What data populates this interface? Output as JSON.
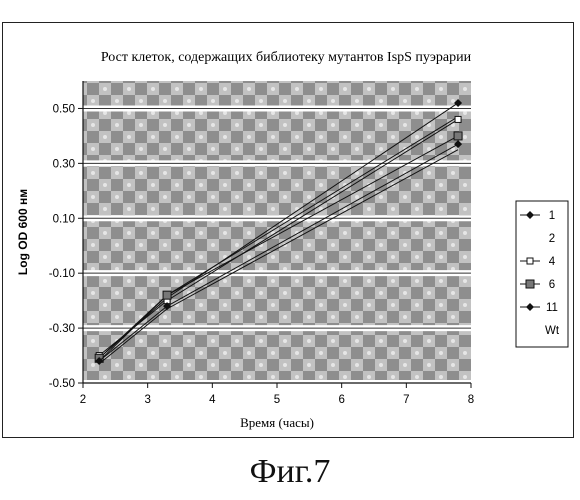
{
  "figure": {
    "caption": "Фиг.7"
  },
  "chart_data": {
    "type": "line",
    "title": "Рост клеток, содержащих библиотеку мутантов IspS пуэрарии",
    "xlabel": "Время (часы)",
    "ylabel": "Log OD 600 нм",
    "xlim": [
      2,
      8
    ],
    "ylim": [
      -0.5,
      0.6
    ],
    "x_ticks": [
      "2",
      "3",
      "4",
      "5",
      "6",
      "7",
      "8"
    ],
    "x_tick_values": [
      2,
      3,
      4,
      5,
      6,
      7,
      8
    ],
    "y_ticks": [
      "0.50",
      "0.30",
      "0.10",
      "-0.10",
      "-0.30",
      "-0.50"
    ],
    "y_tick_values": [
      0.5,
      0.3,
      0.1,
      -0.1,
      -0.3,
      -0.5
    ],
    "grid": "horizontal",
    "legend_position": "right",
    "series": [
      {
        "name": "1",
        "marker": "diamond",
        "x": [
          2.25,
          3.3,
          7.8
        ],
        "y": [
          -0.41,
          -0.19,
          0.52
        ]
      },
      {
        "name": "2",
        "marker": "none",
        "x": [
          2.25,
          3.3,
          7.8
        ],
        "y": [
          -0.42,
          -0.18,
          0.47
        ]
      },
      {
        "name": "4",
        "marker": "square-small",
        "x": [
          2.25,
          3.3,
          7.8
        ],
        "y": [
          -0.4,
          -0.2,
          0.46
        ]
      },
      {
        "name": "6",
        "marker": "square",
        "x": [
          2.25,
          3.3,
          7.8
        ],
        "y": [
          -0.41,
          -0.18,
          0.4
        ]
      },
      {
        "name": "11",
        "marker": "diamond",
        "x": [
          2.25,
          3.3,
          7.8
        ],
        "y": [
          -0.42,
          -0.22,
          0.37
        ]
      },
      {
        "name": "Wt",
        "marker": "none",
        "x": [
          2.25,
          3.3,
          7.8
        ],
        "y": [
          -0.43,
          -0.23,
          0.35
        ]
      }
    ]
  }
}
